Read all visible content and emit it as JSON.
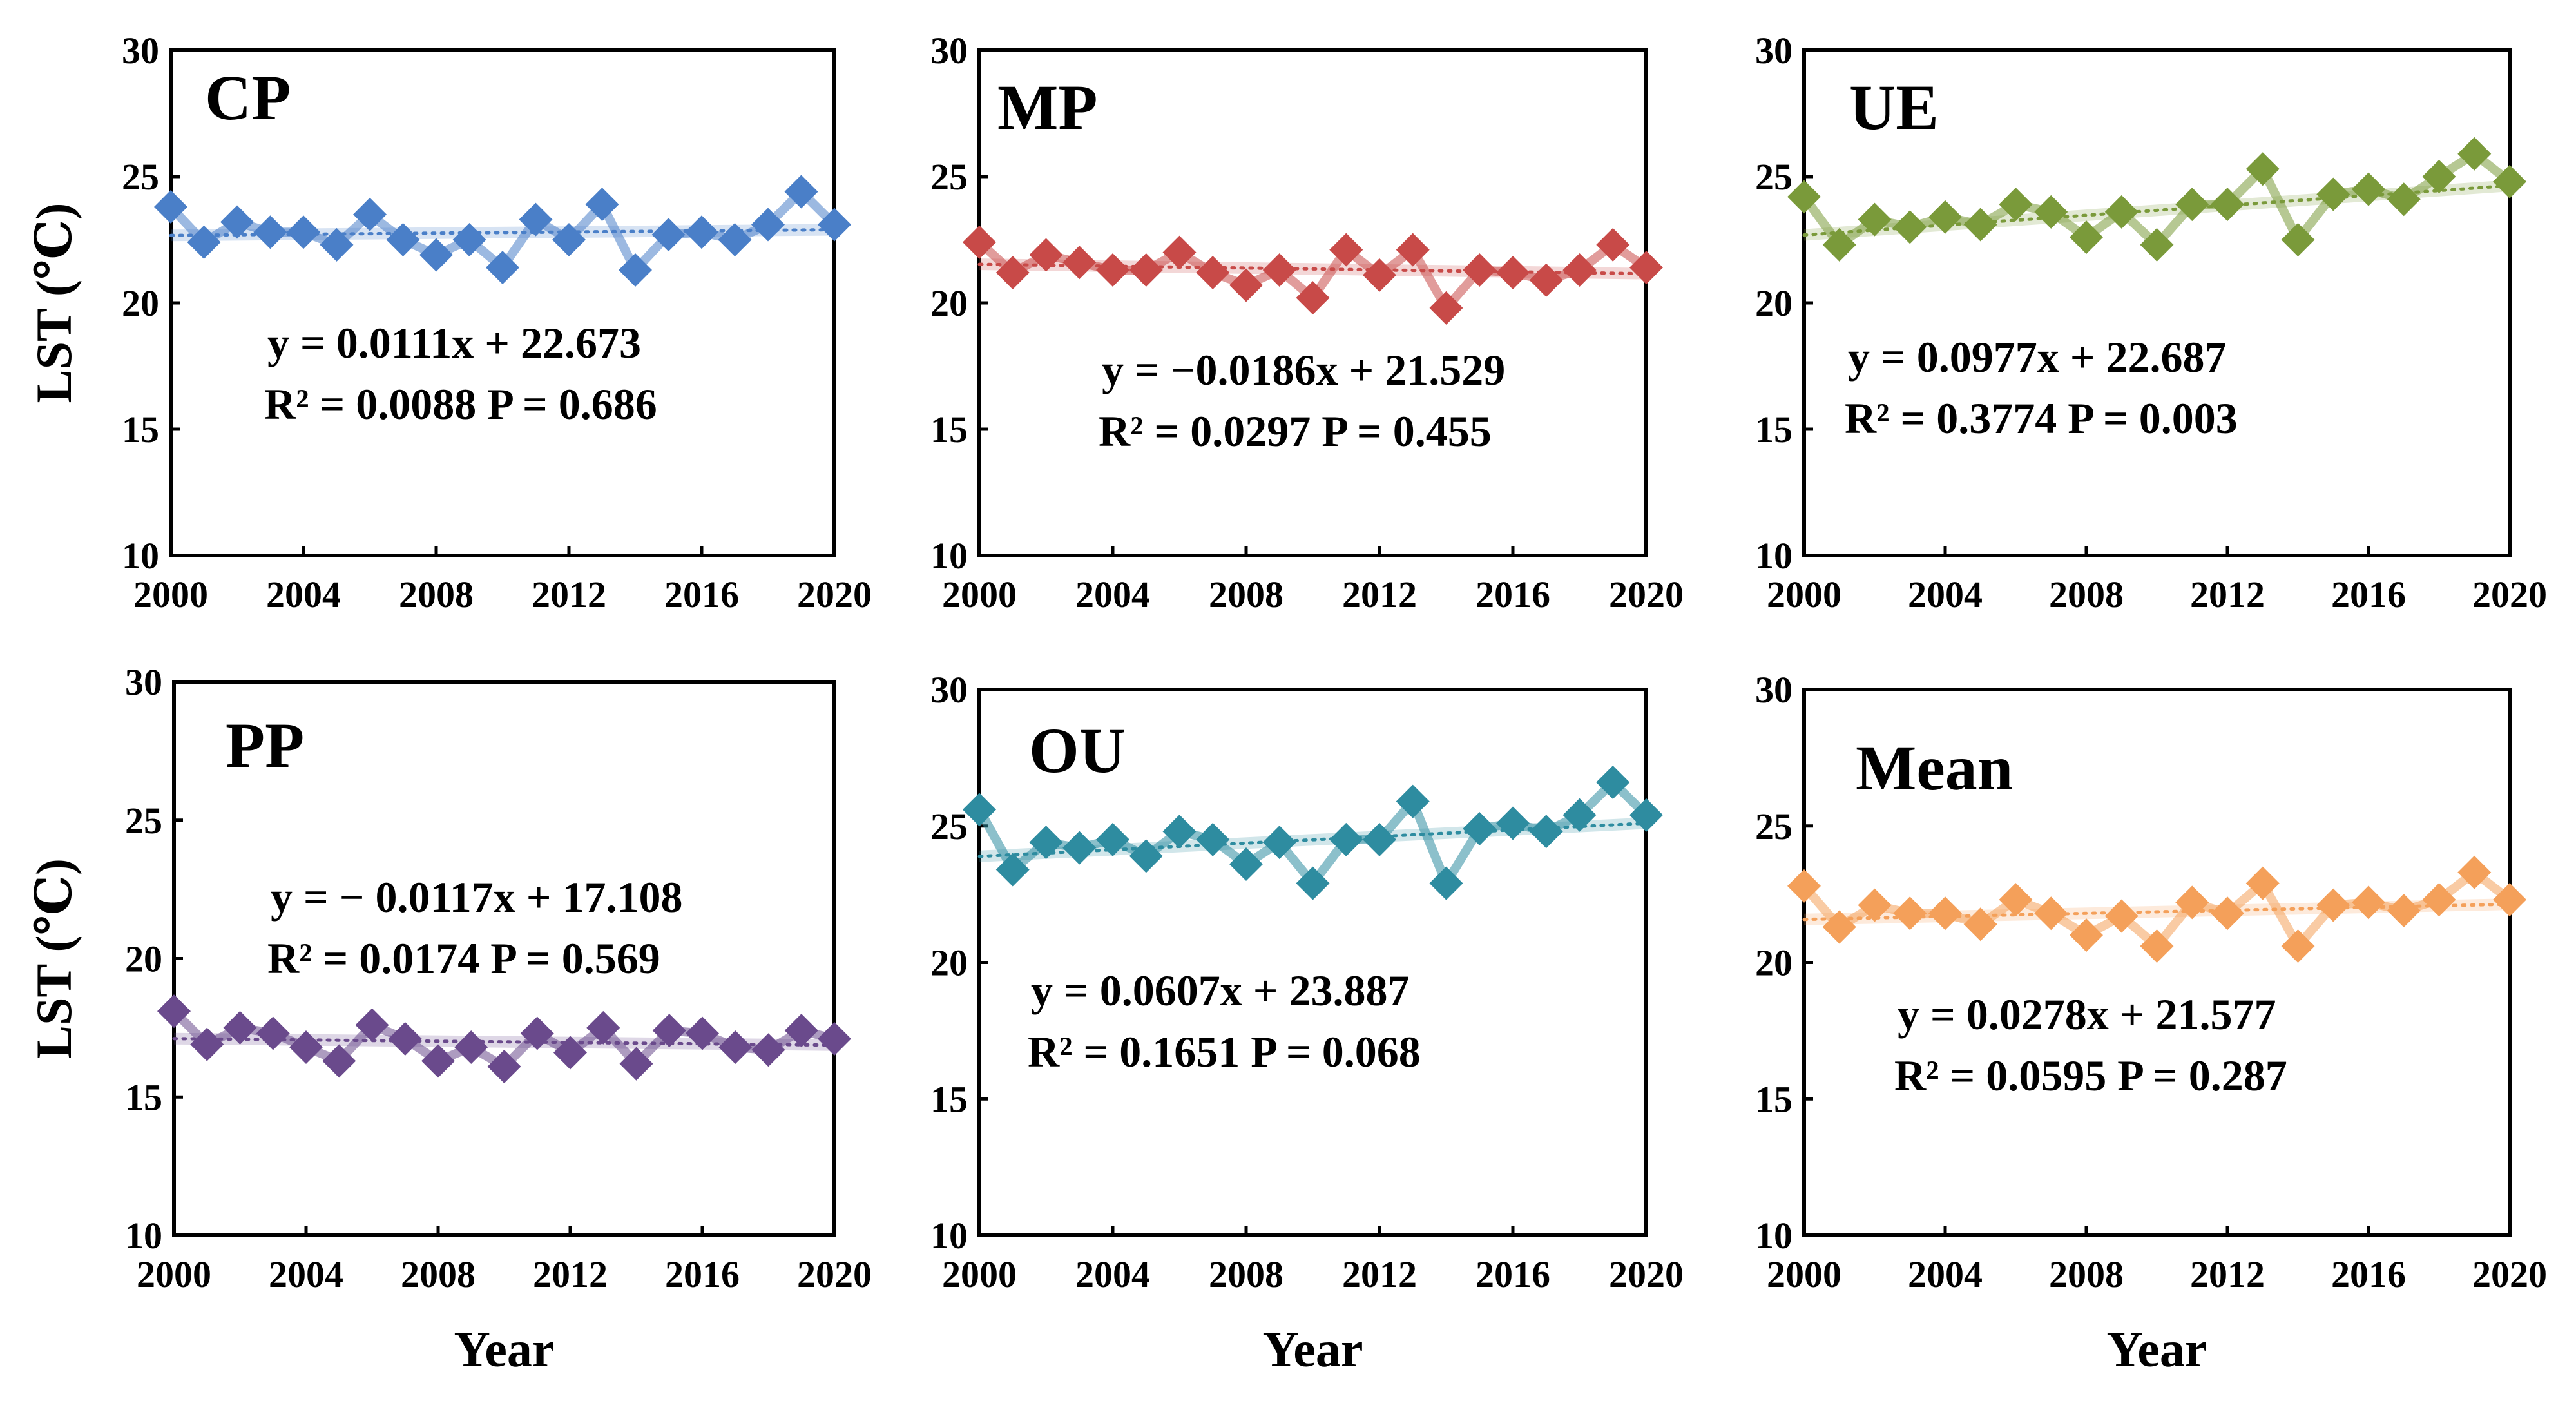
{
  "chart_data": [
    {
      "type": "line",
      "id": "cp",
      "panel_label": "CP",
      "color": "#4a7fc8",
      "x": [
        2000,
        2001,
        2002,
        2003,
        2004,
        2005,
        2006,
        2007,
        2008,
        2009,
        2010,
        2011,
        2012,
        2013,
        2014,
        2015,
        2016,
        2017,
        2018,
        2019,
        2020
      ],
      "values": [
        23.8,
        22.4,
        23.2,
        22.8,
        22.8,
        22.3,
        23.5,
        22.5,
        21.9,
        22.5,
        21.4,
        23.3,
        22.5,
        23.9,
        21.3,
        22.7,
        22.8,
        22.5,
        23.1,
        24.4,
        23.1
      ],
      "trend": {
        "slope": 0.0111,
        "intercept": 22.673
      },
      "equation": "y = 0.0111x + 22.673",
      "stats": "R² = 0.0088  P = 0.686",
      "ylabel": "LST (℃)",
      "xlabel": "",
      "ylim": [
        10,
        30
      ],
      "yticks": [
        10,
        15,
        20,
        25,
        30
      ],
      "xticks": [
        2000,
        2004,
        2008,
        2012,
        2016,
        2020
      ]
    },
    {
      "type": "line",
      "id": "mp",
      "panel_label": "MP",
      "color": "#c84a48",
      "x": [
        2000,
        2001,
        2002,
        2003,
        2004,
        2005,
        2006,
        2007,
        2008,
        2009,
        2010,
        2011,
        2012,
        2013,
        2014,
        2015,
        2016,
        2017,
        2018,
        2019,
        2020
      ],
      "values": [
        22.4,
        21.2,
        21.9,
        21.6,
        21.3,
        21.3,
        22.0,
        21.2,
        20.7,
        21.3,
        20.2,
        22.1,
        21.1,
        22.1,
        19.8,
        21.3,
        21.2,
        20.9,
        21.3,
        22.3,
        21.4
      ],
      "trend": {
        "slope": -0.0186,
        "intercept": 21.529
      },
      "equation": "y = −0.0186x + 21.529",
      "stats": "R² = 0.0297  P = 0.455",
      "ylabel": "",
      "xlabel": "",
      "ylim": [
        10,
        30
      ],
      "yticks": [
        10,
        15,
        20,
        25,
        30
      ],
      "xticks": [
        2000,
        2004,
        2008,
        2012,
        2016,
        2020
      ]
    },
    {
      "type": "line",
      "id": "ue",
      "panel_label": "UE",
      "color": "#7a9a3a",
      "x": [
        2000,
        2001,
        2002,
        2003,
        2004,
        2005,
        2006,
        2007,
        2008,
        2009,
        2010,
        2011,
        2012,
        2013,
        2014,
        2015,
        2016,
        2017,
        2018,
        2019,
        2020
      ],
      "values": [
        24.2,
        22.3,
        23.3,
        23.0,
        23.4,
        23.1,
        23.9,
        23.6,
        22.6,
        23.6,
        22.3,
        23.9,
        23.9,
        25.3,
        22.5,
        24.3,
        24.5,
        24.1,
        25.0,
        25.9,
        24.8
      ],
      "trend": {
        "slope": 0.0977,
        "intercept": 22.687
      },
      "equation": "y = 0.0977x + 22.687",
      "stats": "R² = 0.3774  P = 0.003",
      "ylabel": "",
      "xlabel": "",
      "ylim": [
        10,
        30
      ],
      "yticks": [
        10,
        15,
        20,
        25,
        30
      ],
      "xticks": [
        2000,
        2004,
        2008,
        2012,
        2016,
        2020
      ]
    },
    {
      "type": "line",
      "id": "pp",
      "panel_label": "PP",
      "color": "#6a4a8c",
      "x": [
        2000,
        2001,
        2002,
        2003,
        2004,
        2005,
        2006,
        2007,
        2008,
        2009,
        2010,
        2011,
        2012,
        2013,
        2014,
        2015,
        2016,
        2017,
        2018,
        2019,
        2020
      ],
      "values": [
        18.1,
        16.9,
        17.5,
        17.3,
        16.8,
        16.3,
        17.6,
        17.1,
        16.3,
        16.8,
        16.1,
        17.3,
        16.6,
        17.5,
        16.2,
        17.4,
        17.3,
        16.8,
        16.7,
        17.4,
        17.1
      ],
      "trend": {
        "slope": -0.0117,
        "intercept": 17.108
      },
      "equation": "y = − 0.0117x + 17.108",
      "stats": "R² = 0.0174  P = 0.569",
      "ylabel": "LST (℃)",
      "xlabel": "Year",
      "ylim": [
        10,
        30
      ],
      "yticks": [
        10,
        15,
        20,
        25,
        30
      ],
      "xticks": [
        2000,
        2004,
        2008,
        2012,
        2016,
        2020
      ]
    },
    {
      "type": "line",
      "id": "ou",
      "panel_label": "OU",
      "color": "#2e8ca0",
      "x": [
        2000,
        2001,
        2002,
        2003,
        2004,
        2005,
        2006,
        2007,
        2008,
        2009,
        2010,
        2011,
        2012,
        2013,
        2014,
        2015,
        2016,
        2017,
        2018,
        2019,
        2020
      ],
      "values": [
        25.6,
        23.4,
        24.4,
        24.2,
        24.5,
        23.9,
        24.8,
        24.5,
        23.6,
        24.4,
        22.9,
        24.5,
        24.5,
        25.9,
        22.9,
        24.9,
        25.1,
        24.8,
        25.4,
        26.6,
        25.4
      ],
      "trend": {
        "slope": 0.0607,
        "intercept": 23.887
      },
      "equation": "y = 0.0607x + 23.887",
      "stats": "R² = 0.1651  P = 0.068",
      "ylabel": "",
      "xlabel": "Year",
      "ylim": [
        10,
        30
      ],
      "yticks": [
        10,
        15,
        20,
        25,
        30
      ],
      "xticks": [
        2000,
        2004,
        2008,
        2012,
        2016,
        2020
      ]
    },
    {
      "type": "line",
      "id": "mean",
      "panel_label": "Mean",
      "color": "#f4a05a",
      "x": [
        2000,
        2001,
        2002,
        2003,
        2004,
        2005,
        2006,
        2007,
        2008,
        2009,
        2010,
        2011,
        2012,
        2013,
        2014,
        2015,
        2016,
        2017,
        2018,
        2019,
        2020
      ],
      "values": [
        22.8,
        21.3,
        22.1,
        21.8,
        21.8,
        21.4,
        22.3,
        21.8,
        21.0,
        21.7,
        20.6,
        22.2,
        21.8,
        22.9,
        20.6,
        22.1,
        22.2,
        21.9,
        22.3,
        23.3,
        22.3
      ],
      "trend": {
        "slope": 0.0278,
        "intercept": 21.577
      },
      "equation": "y = 0.0278x + 21.577",
      "stats": "R² = 0.0595  P = 0.287",
      "ylabel": "",
      "xlabel": "Year",
      "ylim": [
        10,
        30
      ],
      "yticks": [
        10,
        15,
        20,
        25,
        30
      ],
      "xticks": [
        2000,
        2004,
        2008,
        2012,
        2016,
        2020
      ]
    }
  ]
}
